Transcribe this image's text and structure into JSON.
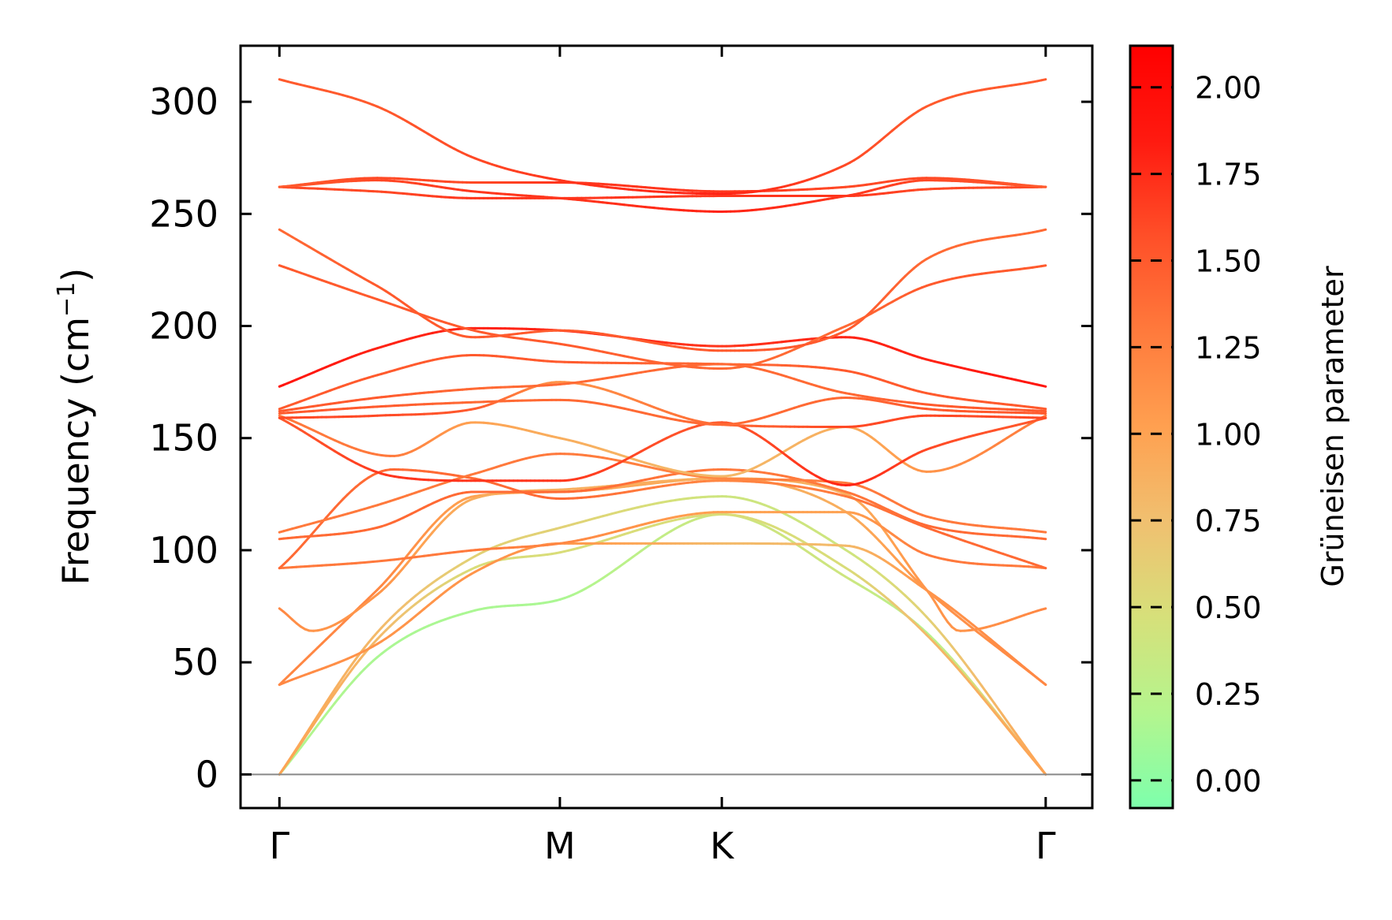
{
  "chart_data": {
    "type": "line",
    "title": "",
    "xlabel": "",
    "ylabel": "Frequency (cm",
    "ylabel_sup": "−1",
    "ylabel_close": ")",
    "ylim": [
      -15,
      325
    ],
    "yticks": [
      0,
      50,
      100,
      150,
      200,
      250,
      300
    ],
    "ytick_labels": [
      "0",
      "50",
      "100",
      "150",
      "200",
      "250",
      "300"
    ],
    "xlim": [
      -0.12,
      2.51
    ],
    "xticks": [
      0,
      0.866,
      1.366,
      2.366
    ],
    "xtick_labels": [
      "Γ",
      "M",
      "K",
      "Γ"
    ],
    "zero_line": true,
    "colorbar": {
      "label": "Grüneisen parameter",
      "range": [
        -0.08,
        2.12
      ],
      "ticks": [
        0,
        0.25,
        0.5,
        0.75,
        1.0,
        1.25,
        1.5,
        1.75,
        2.0
      ],
      "tick_labels": [
        "0.00",
        "0.25",
        "0.50",
        "0.75",
        "1.00",
        "1.25",
        "1.50",
        "1.75",
        "2.00"
      ],
      "colors": [
        "#7dffac",
        "#b4f58e",
        "#d6e07a",
        "#f0c070",
        "#ffa050",
        "#ff7a3c",
        "#ff4f28",
        "#ff1a10",
        "#ff0000"
      ]
    },
    "series": [
      {
        "name": "band-1",
        "x": [
          0,
          0.3,
          0.6,
          0.866,
          1.366,
          1.75,
          2.0,
          2.366
        ],
        "y": [
          0,
          52,
          73,
          78,
          116,
          88,
          63,
          0
        ],
        "gruneisen": [
          0.2,
          0.15,
          0.15,
          0.15,
          0.4,
          0.4,
          0.2,
          0.9
        ]
      },
      {
        "name": "band-2",
        "x": [
          0,
          0.3,
          0.6,
          0.866,
          1.366,
          1.75,
          2.0,
          2.366
        ],
        "y": [
          0,
          60,
          92,
          99,
          116,
          92,
          62,
          0
        ],
        "gruneisen": [
          1.0,
          0.8,
          0.5,
          0.5,
          0.5,
          0.5,
          0.8,
          1.0
        ]
      },
      {
        "name": "band-3",
        "x": [
          0,
          0.3,
          0.6,
          0.866,
          1.366,
          1.75,
          2.0,
          2.366
        ],
        "y": [
          0,
          63,
          97,
          110,
          124,
          100,
          70,
          0
        ],
        "gruneisen": [
          1.0,
          0.8,
          0.6,
          0.6,
          0.4,
          0.4,
          0.6,
          1.0
        ]
      },
      {
        "name": "band-4",
        "x": [
          0,
          0.3,
          0.6,
          0.866,
          1.366,
          1.75,
          2.0,
          2.366
        ],
        "y": [
          40,
          58,
          90,
          103,
          103,
          102,
          82,
          40
        ],
        "gruneisen": [
          1.2,
          1.1,
          1.1,
          1.1,
          0.8,
          0.8,
          1.1,
          1.2
        ]
      },
      {
        "name": "band-5",
        "x": [
          0,
          0.3,
          0.6,
          0.866,
          1.366,
          1.75,
          2.0,
          2.366
        ],
        "y": [
          40,
          82,
          124,
          126,
          132,
          117,
          82,
          40
        ],
        "gruneisen": [
          1.2,
          1.2,
          1.0,
          1.0,
          0.9,
          0.9,
          1.1,
          1.2
        ]
      },
      {
        "name": "band-6",
        "x": [
          0,
          0.1,
          0.3,
          0.6,
          0.866,
          1.366,
          1.75,
          2.0,
          2.1,
          2.366
        ],
        "y": [
          74,
          64,
          80,
          123,
          127,
          132,
          125,
          82,
          64,
          74
        ],
        "gruneisen": [
          1.2,
          1.1,
          1.1,
          0.9,
          0.9,
          0.9,
          0.9,
          1.1,
          1.1,
          1.2
        ]
      },
      {
        "name": "band-7",
        "x": [
          0,
          0.3,
          0.6,
          0.866,
          1.366,
          1.75,
          2.0,
          2.366
        ],
        "y": [
          92,
          95,
          100,
          103,
          117,
          117,
          98,
          92
        ],
        "gruneisen": [
          1.3,
          1.3,
          1.3,
          1.2,
          1.0,
          1.0,
          1.3,
          1.3
        ]
      },
      {
        "name": "band-8",
        "x": [
          0,
          0.35,
          0.6,
          0.866,
          1.366,
          1.75,
          2.0,
          2.366
        ],
        "y": [
          92,
          136,
          132,
          123,
          131,
          124,
          110,
          92
        ],
        "gruneisen": [
          1.4,
          1.4,
          1.4,
          1.4,
          1.2,
          1.3,
          1.4,
          1.4
        ]
      },
      {
        "name": "band-9",
        "x": [
          0,
          0.3,
          0.6,
          0.866,
          1.366,
          1.75,
          2.0,
          2.366
        ],
        "y": [
          105,
          110,
          126,
          126,
          136,
          126,
          111,
          105
        ],
        "gruneisen": [
          1.4,
          1.4,
          1.4,
          1.4,
          1.3,
          1.3,
          1.4,
          1.4
        ]
      },
      {
        "name": "band-10",
        "x": [
          0,
          0.3,
          0.6,
          0.866,
          1.366,
          1.75,
          2.0,
          2.366
        ],
        "y": [
          108,
          120,
          134,
          143,
          132,
          130,
          115,
          108
        ],
        "gruneisen": [
          1.3,
          1.3,
          1.3,
          1.3,
          1.2,
          1.3,
          1.3,
          1.3
        ]
      },
      {
        "name": "band-11",
        "x": [
          0,
          0.35,
          0.6,
          0.866,
          1.366,
          1.75,
          2.0,
          2.366
        ],
        "y": [
          160,
          142,
          157,
          150,
          133,
          155,
          135,
          160
        ],
        "gruneisen": [
          1.3,
          1.3,
          1.0,
          0.9,
          0.8,
          0.9,
          1.1,
          1.3
        ]
      },
      {
        "name": "band-12",
        "x": [
          0,
          0.35,
          0.6,
          0.866,
          1.366,
          1.75,
          2.0,
          2.366
        ],
        "y": [
          159,
          133,
          131,
          131,
          157,
          129,
          145,
          159
        ],
        "gruneisen": [
          1.5,
          1.7,
          1.7,
          1.7,
          1.5,
          1.8,
          1.6,
          1.5
        ]
      },
      {
        "name": "band-13",
        "x": [
          0,
          0.3,
          0.6,
          0.866,
          1.366,
          1.75,
          2.0,
          2.366
        ],
        "y": [
          159,
          160,
          163,
          175,
          156,
          155,
          160,
          159
        ],
        "gruneisen": [
          1.6,
          1.6,
          1.5,
          1.1,
          1.4,
          1.6,
          1.6,
          1.6
        ]
      },
      {
        "name": "band-14",
        "x": [
          0,
          0.3,
          0.6,
          0.866,
          1.366,
          1.75,
          2.0,
          2.366
        ],
        "y": [
          161,
          164,
          166,
          167,
          156,
          168,
          163,
          161
        ],
        "gruneisen": [
          1.5,
          1.5,
          1.4,
          1.4,
          1.4,
          1.4,
          1.5,
          1.5
        ]
      },
      {
        "name": "band-15",
        "x": [
          0,
          0.3,
          0.6,
          0.866,
          1.366,
          1.75,
          2.0,
          2.366
        ],
        "y": [
          162,
          168,
          172,
          174,
          183,
          170,
          165,
          162
        ],
        "gruneisen": [
          1.5,
          1.5,
          1.4,
          1.4,
          1.4,
          1.4,
          1.5,
          1.5
        ]
      },
      {
        "name": "band-16",
        "x": [
          0,
          0.3,
          0.6,
          0.866,
          1.366,
          1.75,
          2.0,
          2.366
        ],
        "y": [
          163,
          178,
          187,
          184,
          183,
          180,
          170,
          163
        ],
        "gruneisen": [
          1.5,
          1.5,
          1.5,
          1.5,
          1.4,
          1.5,
          1.5,
          1.5
        ]
      },
      {
        "name": "band-17",
        "x": [
          0,
          0.3,
          0.6,
          0.866,
          1.366,
          1.75,
          2.0,
          2.366
        ],
        "y": [
          173,
          190,
          199,
          198,
          191,
          195,
          185,
          173
        ],
        "gruneisen": [
          1.9,
          1.8,
          1.8,
          1.8,
          1.7,
          1.8,
          1.8,
          1.9
        ]
      },
      {
        "name": "band-18",
        "x": [
          0,
          0.3,
          0.6,
          0.866,
          1.366,
          1.75,
          2.0,
          2.366
        ],
        "y": [
          227,
          212,
          198,
          192,
          181,
          200,
          218,
          227
        ],
        "gruneisen": [
          1.5,
          1.5,
          1.5,
          1.5,
          1.4,
          1.4,
          1.5,
          1.5
        ]
      },
      {
        "name": "band-19",
        "x": [
          0,
          0.3,
          0.6,
          0.866,
          1.366,
          1.75,
          2.0,
          2.366
        ],
        "y": [
          243,
          218,
          195,
          198,
          189,
          198,
          230,
          243
        ],
        "gruneisen": [
          1.4,
          1.5,
          1.5,
          1.5,
          1.5,
          1.5,
          1.4,
          1.4
        ]
      },
      {
        "name": "band-20",
        "x": [
          0,
          0.3,
          0.6,
          0.866,
          1.366,
          1.75,
          2.0,
          2.366
        ],
        "y": [
          262,
          260,
          257,
          257,
          258,
          258,
          261,
          262
        ],
        "gruneisen": [
          1.6,
          1.6,
          1.7,
          1.7,
          1.7,
          1.7,
          1.6,
          1.6
        ]
      },
      {
        "name": "band-21",
        "x": [
          0,
          0.3,
          0.6,
          0.866,
          1.366,
          1.75,
          2.0,
          2.366
        ],
        "y": [
          262,
          265,
          260,
          257,
          251,
          258,
          265,
          262
        ],
        "gruneisen": [
          1.5,
          1.6,
          1.7,
          1.7,
          1.8,
          1.7,
          1.6,
          1.5
        ]
      },
      {
        "name": "band-22",
        "x": [
          0,
          0.3,
          0.6,
          0.866,
          1.366,
          1.75,
          2.0,
          2.366
        ],
        "y": [
          262,
          266,
          264,
          264,
          260,
          262,
          266,
          262
        ],
        "gruneisen": [
          1.5,
          1.6,
          1.6,
          1.7,
          1.7,
          1.6,
          1.6,
          1.5
        ]
      },
      {
        "name": "band-23",
        "x": [
          0,
          0.3,
          0.6,
          0.866,
          1.366,
          1.75,
          2.0,
          2.366
        ],
        "y": [
          310,
          298,
          275,
          265,
          259,
          272,
          298,
          310
        ],
        "gruneisen": [
          1.5,
          1.5,
          1.6,
          1.7,
          1.8,
          1.6,
          1.5,
          1.5
        ]
      }
    ]
  }
}
